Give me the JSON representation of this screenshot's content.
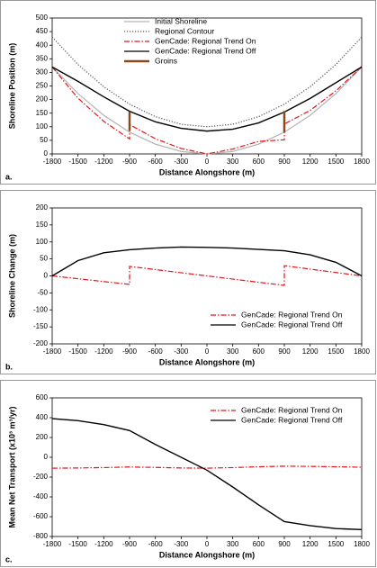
{
  "chart_data": [
    {
      "type": "line",
      "panel_label": "a.",
      "xlabel": "Distance Alongshore (m)",
      "ylabel": "Shoreline Position (m)",
      "xlim": [
        -1800,
        1800
      ],
      "xticks": [
        -1800,
        -1500,
        -1200,
        -900,
        -600,
        -300,
        0,
        300,
        600,
        900,
        1200,
        1500,
        1800
      ],
      "ylim": [
        0,
        500
      ],
      "yticks": [
        0,
        50,
        100,
        150,
        200,
        250,
        300,
        350,
        400,
        450,
        500
      ],
      "legend": "upper center",
      "series": [
        {
          "name": "Initial Shoreline",
          "color": "#b4b4b4",
          "dash": "solid",
          "x": [
            -1800,
            -1500,
            -1200,
            -900,
            -600,
            -300,
            0,
            300,
            600,
            900,
            1200,
            1500,
            1800
          ],
          "values": [
            320,
            222,
            142,
            80,
            36,
            9,
            0,
            9,
            36,
            80,
            142,
            222,
            320
          ]
        },
        {
          "name": "Regional Contour",
          "color": "#555555",
          "dash": "dotted",
          "x": [
            -1800,
            -1500,
            -1200,
            -900,
            -600,
            -300,
            0,
            300,
            600,
            900,
            1200,
            1500,
            1800
          ],
          "values": [
            430,
            329,
            247,
            183,
            137,
            109,
            100,
            109,
            137,
            183,
            247,
            329,
            430
          ]
        },
        {
          "name": "GenCade: Regional Trend On",
          "color": "#e8141c",
          "dash": "dashdot",
          "x": [
            -1800,
            -1500,
            -1200,
            -900,
            -900,
            -600,
            -300,
            0,
            300,
            600,
            900,
            900,
            1200,
            1500,
            1800
          ],
          "values": [
            320,
            205,
            120,
            55,
            108,
            56,
            20,
            0,
            18,
            46,
            52,
            110,
            160,
            232,
            320
          ]
        },
        {
          "name": "GenCade: Regional Trend Off",
          "color": "#000000",
          "dash": "solid",
          "x": [
            -1800,
            -1500,
            -1200,
            -900,
            -600,
            -300,
            0,
            300,
            600,
            900,
            1200,
            1500,
            1800
          ],
          "values": [
            320,
            267,
            210,
            157,
            118,
            94,
            84,
            91,
            114,
            154,
            204,
            262,
            320
          ]
        },
        {
          "name": "Groins",
          "color": "#8b4a1c",
          "dash": "bar",
          "x": [
            -900,
            900
          ],
          "values": [
            85,
            80
          ],
          "high": [
            155,
            158
          ]
        }
      ]
    },
    {
      "type": "line",
      "panel_label": "b.",
      "xlabel": "Distance Alongshore (m)",
      "ylabel": "Shoreline Change (m)",
      "xlim": [
        -1800,
        1800
      ],
      "xticks": [
        -1800,
        -1500,
        -1200,
        -900,
        -600,
        -300,
        0,
        300,
        600,
        900,
        1200,
        1500,
        1800
      ],
      "ylim": [
        -200,
        200
      ],
      "yticks": [
        -200,
        -150,
        -100,
        -50,
        0,
        50,
        100,
        150,
        200
      ],
      "legend": "lower right",
      "series": [
        {
          "name": "GenCade: Regional Trend On",
          "color": "#e8141c",
          "dash": "dashdot",
          "x": [
            -1800,
            -900,
            -900,
            900,
            900,
            1800
          ],
          "values": [
            0,
            -25,
            28,
            -28,
            30,
            0
          ]
        },
        {
          "name": "GenCade: Regional Trend Off",
          "color": "#000000",
          "dash": "solid",
          "x": [
            -1800,
            -1500,
            -1200,
            -900,
            -600,
            -300,
            0,
            300,
            600,
            900,
            1200,
            1500,
            1800
          ],
          "values": [
            0,
            45,
            68,
            77,
            82,
            85,
            84,
            82,
            78,
            74,
            62,
            40,
            0
          ]
        }
      ]
    },
    {
      "type": "line",
      "panel_label": "c.",
      "xlabel": "Distance Alongshore (m)",
      "ylabel": "Mean Net Transport (x10³ m³/yr)",
      "xlim": [
        -1800,
        1800
      ],
      "xticks": [
        -1800,
        -1500,
        -1200,
        -900,
        -600,
        -300,
        0,
        300,
        600,
        900,
        1200,
        1500,
        1800
      ],
      "ylim": [
        -800,
        600
      ],
      "yticks": [
        -800,
        -600,
        -400,
        -200,
        0,
        200,
        400,
        600
      ],
      "legend": "upper right",
      "series": [
        {
          "name": "GenCade: Regional Trend On",
          "color": "#e8141c",
          "dash": "dashdot",
          "x": [
            -1800,
            -1500,
            -1200,
            -900,
            -600,
            -300,
            0,
            300,
            600,
            900,
            1200,
            1500,
            1800
          ],
          "values": [
            -110,
            -108,
            -104,
            -98,
            -102,
            -108,
            -110,
            -104,
            -96,
            -90,
            -92,
            -96,
            -100
          ]
        },
        {
          "name": "GenCade: Regional Trend Off",
          "color": "#000000",
          "dash": "solid",
          "x": [
            -1800,
            -1500,
            -1200,
            -900,
            -600,
            -300,
            0,
            300,
            600,
            900,
            1200,
            1500,
            1800
          ],
          "values": [
            390,
            370,
            330,
            270,
            130,
            0,
            -130,
            -300,
            -480,
            -650,
            -690,
            -720,
            -730
          ]
        }
      ]
    }
  ]
}
